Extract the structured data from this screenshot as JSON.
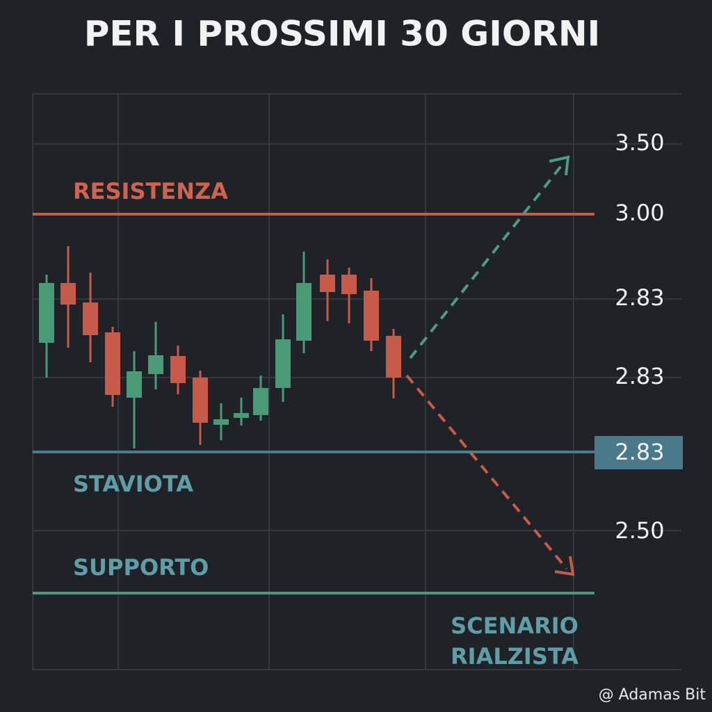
{
  "title": "PER I PROSSIMI 30 GIORNI",
  "price_labels": [
    "3.50",
    "3.00",
    "2.83",
    "2.83",
    "2.83",
    "2.50"
  ],
  "levels": {
    "resistance": "RESISTENZA",
    "middle": "STAVIOTA",
    "support": "SUPPORTO"
  },
  "scenario": [
    "SCENARIO",
    "RIALZISTA"
  ],
  "watermark": "@ Adamas Bit"
}
